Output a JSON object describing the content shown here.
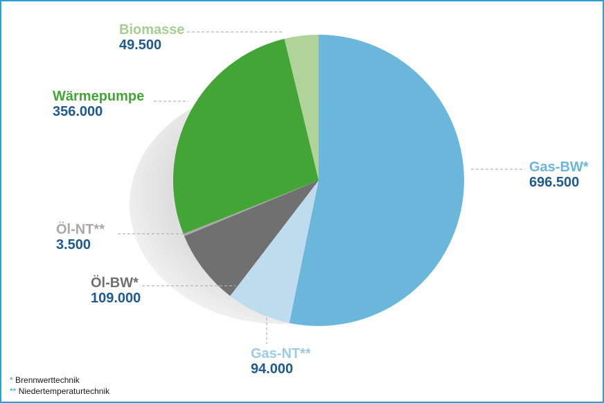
{
  "chart_data": {
    "type": "pie",
    "title": "",
    "slices": [
      {
        "label": "Gas-BW*",
        "value": 696500,
        "value_label": "696.500",
        "color": "#6ab7db",
        "label_color": "#6ab7db"
      },
      {
        "label": "Gas-NT**",
        "value": 94000,
        "value_label": "94.000",
        "color": "#bfdcef",
        "label_color": "#9ccbe6"
      },
      {
        "label": "Öl-BW*",
        "value": 109000,
        "value_label": "109.000",
        "color": "#707070",
        "label_color": "#707070"
      },
      {
        "label": "Öl-NT**",
        "value": 3500,
        "value_label": "3.500",
        "color": "#a9a9a9",
        "label_color": "#a9a9a9"
      },
      {
        "label": "Wärmepumpe",
        "value": 356000,
        "value_label": "356.000",
        "color": "#42a536",
        "label_color": "#42a536"
      },
      {
        "label": "Biomasse",
        "value": 49500,
        "value_label": "49.500",
        "color": "#afd39b",
        "label_color": "#a5cf90"
      }
    ]
  },
  "footnotes": [
    {
      "mark": "*",
      "text": "Brennwerttechnik"
    },
    {
      "mark": "**",
      "text": "Niedertemperaturtechnik"
    }
  ],
  "colors": {
    "frame": "#2a9fd8",
    "value_text": "#1e5a8e",
    "leader": "#b5b5b5"
  }
}
